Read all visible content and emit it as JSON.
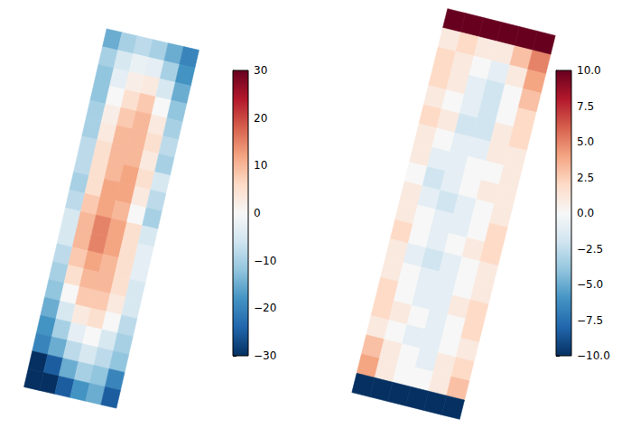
{
  "chart_data": [
    {
      "type": "heatmap",
      "tick_labels": false,
      "colorbar": {
        "range": [
          -30,
          30
        ],
        "ticks": [
          {
            "value": -30,
            "label": "−30"
          },
          {
            "value": -20,
            "label": "−20"
          },
          {
            "value": -10,
            "label": "−10"
          },
          0,
          10,
          20,
          30
        ]
      },
      "cells": [
        [
          -15,
          -10,
          -8,
          -10,
          -15,
          -20
        ],
        [
          -10,
          -5,
          -2,
          -3,
          -10,
          -18
        ],
        [
          -12,
          -3,
          2,
          3,
          -5,
          -15
        ],
        [
          -12,
          0,
          5,
          8,
          0,
          -12
        ],
        [
          -10,
          2,
          8,
          10,
          3,
          -10
        ],
        [
          -10,
          3,
          10,
          10,
          5,
          -8
        ],
        [
          -8,
          5,
          10,
          10,
          3,
          -10
        ],
        [
          -8,
          5,
          10,
          12,
          5,
          -5
        ],
        [
          -10,
          5,
          12,
          12,
          3,
          -8
        ],
        [
          -8,
          8,
          12,
          10,
          0,
          -10
        ],
        [
          -5,
          10,
          15,
          12,
          5,
          -5
        ],
        [
          -5,
          10,
          15,
          12,
          5,
          -3
        ],
        [
          -8,
          8,
          12,
          10,
          5,
          -3
        ],
        [
          -10,
          5,
          10,
          10,
          5,
          -5
        ],
        [
          -12,
          0,
          8,
          8,
          3,
          -5
        ],
        [
          -15,
          -5,
          3,
          5,
          0,
          -8
        ],
        [
          -18,
          -10,
          -3,
          0,
          -5,
          -10
        ],
        [
          -20,
          -15,
          -8,
          -5,
          -8,
          -12
        ],
        [
          -30,
          -25,
          -15,
          -10,
          -12,
          -20
        ],
        [
          -30,
          -30,
          -25,
          -18,
          -15,
          -25
        ]
      ]
    },
    {
      "type": "heatmap",
      "tick_labels": false,
      "colorbar": {
        "range": [
          -10,
          10
        ],
        "ticks": [
          {
            "value": -10,
            "label": "−10.0"
          },
          {
            "value": -7.5,
            "label": "−7.5"
          },
          {
            "value": -5,
            "label": "−5.0"
          },
          {
            "value": -2.5,
            "label": "−2.5"
          },
          {
            "value": 0,
            "label": "0.0"
          },
          {
            "value": 2.5,
            "label": "2.5"
          },
          {
            "value": 5,
            "label": "5.0"
          },
          {
            "value": 7.5,
            "label": "7.5"
          },
          {
            "value": 10,
            "label": "10.0"
          }
        ]
      },
      "cells": [
        [
          10,
          10,
          10,
          10,
          10,
          10
        ],
        [
          1,
          2,
          1,
          1,
          3,
          5
        ],
        [
          2,
          1,
          0,
          -1,
          1,
          4
        ],
        [
          2,
          1,
          -1,
          -2,
          0,
          3
        ],
        [
          1,
          0,
          -1,
          -2,
          0,
          2
        ],
        [
          2,
          1,
          -2,
          -2,
          1,
          2
        ],
        [
          1,
          0,
          -1,
          -1,
          1,
          1
        ],
        [
          1,
          -1,
          -1,
          0,
          0,
          1
        ],
        [
          0,
          -2,
          -1,
          0,
          1,
          1
        ],
        [
          1,
          -1,
          -2,
          -1,
          0,
          1
        ],
        [
          1,
          0,
          -1,
          -1,
          0,
          2
        ],
        [
          2,
          0,
          -1,
          0,
          1,
          2
        ],
        [
          1,
          -1,
          -2,
          -1,
          0,
          1
        ],
        [
          1,
          0,
          -1,
          -1,
          0,
          1
        ],
        [
          2,
          0,
          -1,
          -1,
          1,
          2
        ],
        [
          2,
          1,
          0,
          -1,
          0,
          2
        ],
        [
          1,
          0,
          -1,
          -1,
          0,
          1
        ],
        [
          3,
          1,
          0,
          -1,
          1,
          2
        ],
        [
          4,
          1,
          0,
          0,
          1,
          3
        ],
        [
          -10,
          -10,
          -10,
          -10,
          -10,
          -10
        ]
      ]
    }
  ]
}
